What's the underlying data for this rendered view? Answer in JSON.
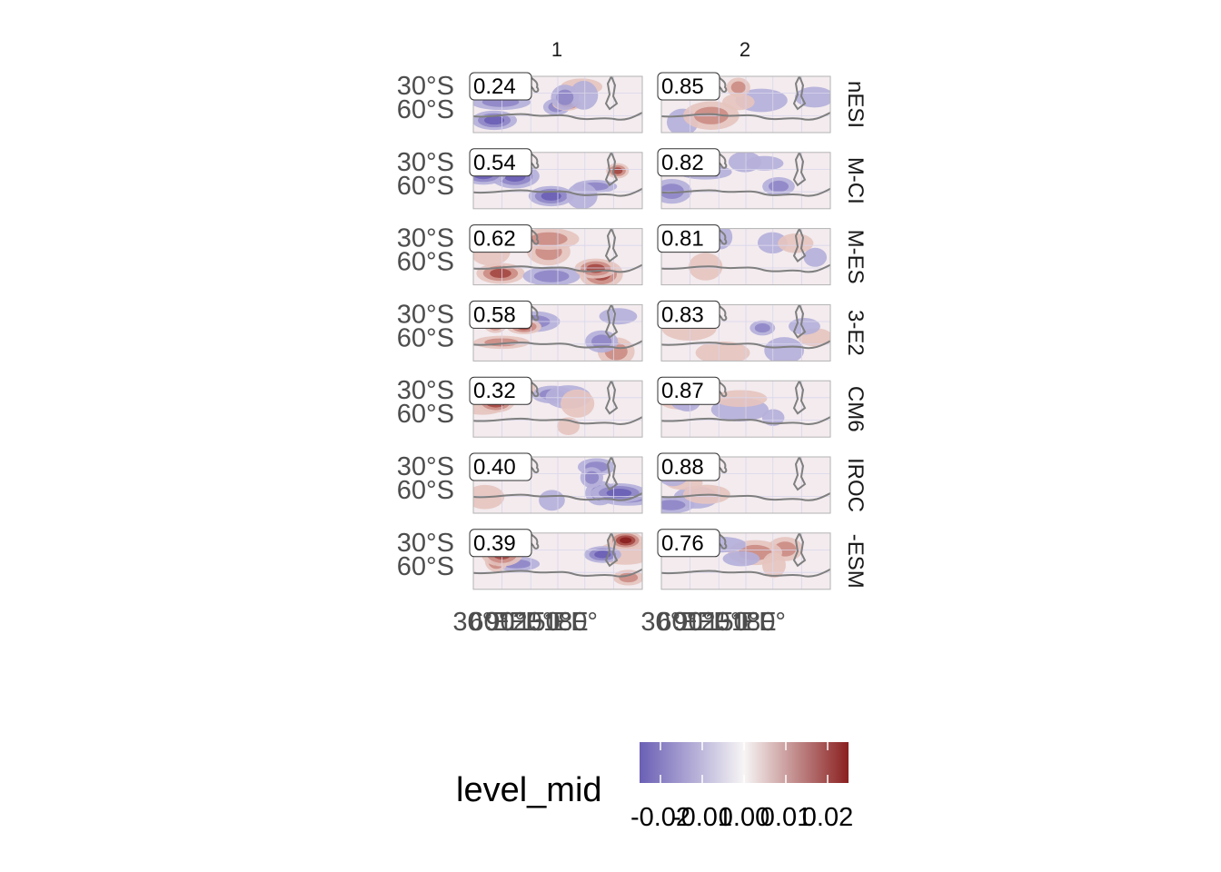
{
  "chart_data": {
    "type": "heatmap",
    "title": "",
    "columns": [
      "1",
      "2"
    ],
    "rows": [
      "nESI",
      "M-CI",
      "M-ES",
      "3-E2",
      "CM6",
      "IROC",
      "-ESM"
    ],
    "y_tick_labels": [
      "30°S",
      "60°S"
    ],
    "x_tick_labels": [
      "30°E",
      "60°E",
      "90°E",
      "120°E",
      "150°E",
      "180°"
    ],
    "correlations": [
      [
        "0.24",
        "0.85"
      ],
      [
        "0.54",
        "0.82"
      ],
      [
        "0.62",
        "0.81"
      ],
      [
        "0.58",
        "0.83"
      ],
      [
        "0.32",
        "0.87"
      ],
      [
        "0.40",
        "0.88"
      ],
      [
        "0.39",
        "0.76"
      ]
    ],
    "legend": {
      "title": "level_mid",
      "ticks": [
        "-0.02",
        "-0.01",
        "0.00",
        "0.01",
        "0.02"
      ],
      "range": [
        -0.025,
        0.025
      ],
      "low_color": "#6a5fb5",
      "mid_color": "#f7f5f5",
      "high_color": "#8b2020"
    },
    "colors": {
      "land": "#7f7f7f",
      "grid": "#d9d6ec",
      "panel_border": "#b3b3b3"
    }
  }
}
